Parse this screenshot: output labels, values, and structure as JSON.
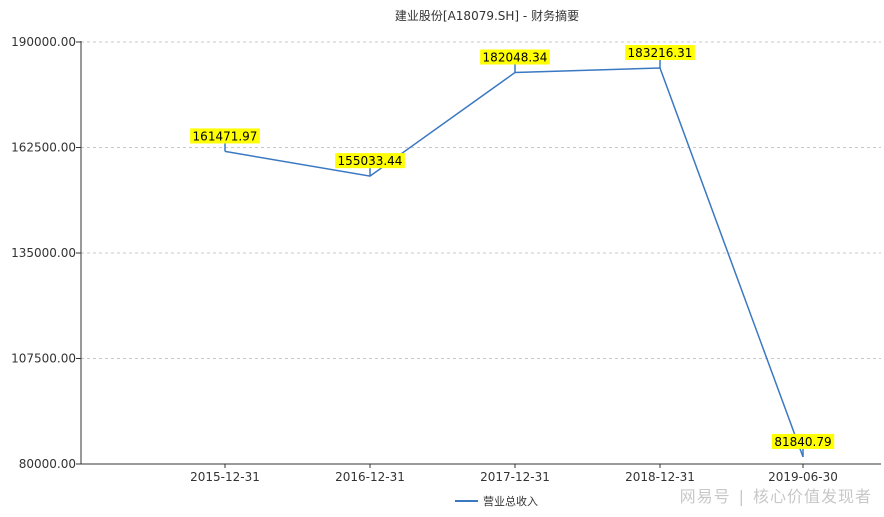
{
  "chart_data": {
    "type": "line",
    "title": "建业股份[A18079.SH] - 财务摘要",
    "categories": [
      "2015-12-31",
      "2016-12-31",
      "2017-12-31",
      "2018-12-31",
      "2019-06-30"
    ],
    "series": [
      {
        "name": "营业总收入",
        "values": [
          161471.97,
          155033.44,
          182048.34,
          183216.31,
          81840.79
        ]
      }
    ],
    "data_labels": [
      "161471.97",
      "155033.44",
      "182048.34",
      "183216.31",
      "81840.79"
    ],
    "y_ticks": [
      "190000.00",
      "162500.00",
      "135000.00",
      "107500.00",
      "80000.00"
    ],
    "ylim": [
      80000,
      190000
    ],
    "grid": true,
    "legend_position": "bottom-center",
    "colors": {
      "line": "#3a78c2",
      "label_bg": "#ffff00",
      "grid": "#c8c8c8",
      "axis": "#333333"
    }
  },
  "watermark": {
    "brand": "网易号",
    "separator": "|",
    "account": "核心价值发现者"
  }
}
